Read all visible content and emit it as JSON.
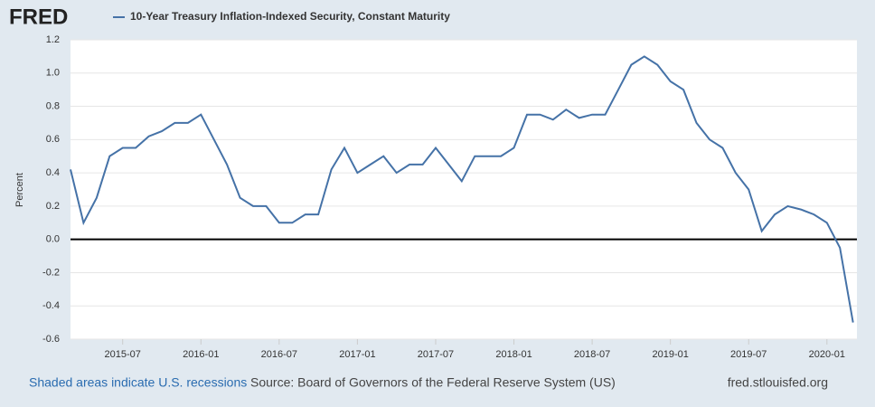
{
  "brand": "FRED",
  "source": "Source: Board of Governors of the Federal Reserve System (US)",
  "recession_note": "Shaded areas indicate U.S. recessions",
  "site": "fred.stlouisfed.org",
  "chart_data": {
    "type": "line",
    "y_label": "Percent",
    "x": [
      "2015-03",
      "2015-04",
      "2015-05",
      "2015-06",
      "2015-07",
      "2015-08",
      "2015-09",
      "2015-10",
      "2015-11",
      "2015-12",
      "2016-01",
      "2016-02",
      "2016-03",
      "2016-04",
      "2016-05",
      "2016-06",
      "2016-07",
      "2016-08",
      "2016-09",
      "2016-10",
      "2016-11",
      "2016-12",
      "2017-01",
      "2017-02",
      "2017-03",
      "2017-04",
      "2017-05",
      "2017-06",
      "2017-07",
      "2017-08",
      "2017-09",
      "2017-10",
      "2017-11",
      "2017-12",
      "2018-01",
      "2018-02",
      "2018-03",
      "2018-04",
      "2018-05",
      "2018-06",
      "2018-07",
      "2018-08",
      "2018-09",
      "2018-10",
      "2018-11",
      "2018-12",
      "2019-01",
      "2019-02",
      "2019-03",
      "2019-04",
      "2019-05",
      "2019-06",
      "2019-07",
      "2019-08",
      "2019-09",
      "2019-10",
      "2019-11",
      "2019-12",
      "2020-01",
      "2020-02",
      "2020-03"
    ],
    "series": [
      {
        "name": "10-Year Treasury Inflation-Indexed Security, Constant Maturity",
        "color": "#4572a7",
        "values": [
          0.42,
          0.1,
          0.25,
          0.5,
          0.55,
          0.55,
          0.62,
          0.65,
          0.7,
          0.7,
          0.75,
          0.6,
          0.45,
          0.25,
          0.2,
          0.2,
          0.1,
          0.1,
          0.15,
          0.15,
          0.42,
          0.55,
          0.4,
          0.45,
          0.5,
          0.4,
          0.45,
          0.45,
          0.55,
          0.45,
          0.35,
          0.5,
          0.5,
          0.5,
          0.55,
          0.75,
          0.75,
          0.72,
          0.78,
          0.73,
          0.75,
          0.75,
          0.9,
          1.05,
          1.1,
          1.05,
          0.95,
          0.9,
          0.7,
          0.6,
          0.55,
          0.4,
          0.3,
          0.05,
          0.15,
          0.2,
          0.18,
          0.15,
          0.1,
          -0.05,
          -0.5
        ]
      }
    ],
    "xlim": [
      "2015-03",
      "2020-03"
    ],
    "xticks": [
      "2015-07",
      "2016-01",
      "2016-07",
      "2017-01",
      "2017-07",
      "2018-01",
      "2018-07",
      "2019-01",
      "2019-07",
      "2020-01"
    ],
    "ylim": [
      -0.6,
      1.2
    ],
    "yticks": [
      {
        "value": -0.6,
        "label": "-0.6"
      },
      {
        "value": -0.4,
        "label": "-0.4"
      },
      {
        "value": -0.2,
        "label": "-0.2"
      },
      {
        "value": 0,
        "label": "0.0"
      },
      {
        "value": 0.2,
        "label": "0.2"
      },
      {
        "value": 0.4,
        "label": "0.4"
      },
      {
        "value": 0.6,
        "label": "0.6"
      },
      {
        "value": 0.8,
        "label": "0.8"
      },
      {
        "value": 1,
        "label": "1.0"
      },
      {
        "value": 1.2,
        "label": "1.2"
      }
    ],
    "grid": true
  }
}
